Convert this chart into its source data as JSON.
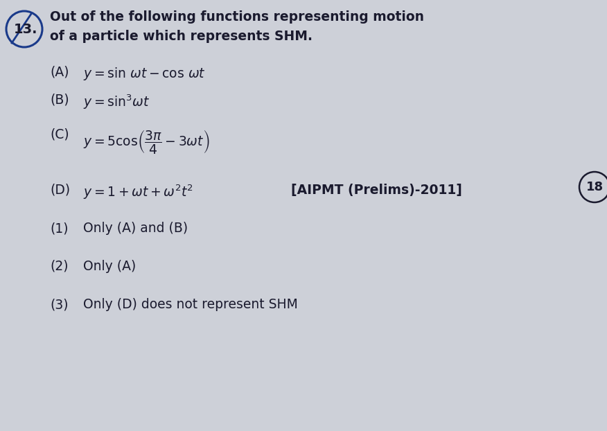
{
  "bg_color": "#cdd0d8",
  "text_color": "#1a1a2e",
  "question_number": "13.",
  "question_line1": "Out of the following functions representing motion",
  "question_line2": "of a particle which represents SHM.",
  "option_A_label": "(A)",
  "option_B_label": "(B)",
  "option_C_label": "(C)",
  "option_D_label": "(D)",
  "source_tag": "[AIPMT (Prelims)-2011]",
  "circle_number": "18",
  "answer1_label": "(1)",
  "answer1_text": "Only (A) and (B)",
  "answer2_label": "(2)",
  "answer2_text": "Only (A)",
  "answer3_label": "(3)",
  "answer3_text": "Only (D) does not represent SHM",
  "font_size_question": 13.5,
  "font_size_options": 13.5,
  "font_size_qnum": 14,
  "circle_color": "#1a3a8a"
}
